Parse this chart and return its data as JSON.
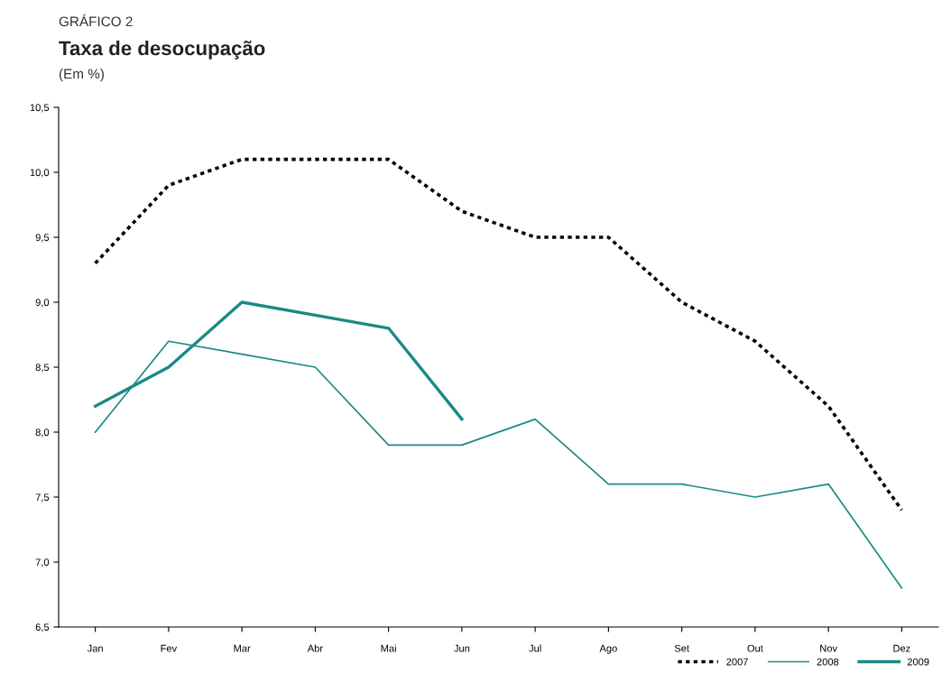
{
  "chart_data": {
    "type": "line",
    "title": "Taxa de desocupação",
    "subtitle": "(Em %)",
    "annotations": [
      "GRÁFICO 2"
    ],
    "categories": [
      "Jan",
      "Fev",
      "Mar",
      "Abr",
      "Mai",
      "Jun",
      "Jul",
      "Ago",
      "Set",
      "Out",
      "Nov",
      "Dez"
    ],
    "series": [
      {
        "name": "2007",
        "color": "#000000",
        "line_style": "dotted",
        "values": [
          9.3,
          9.9,
          10.1,
          10.1,
          10.1,
          9.7,
          9.5,
          9.5,
          9.0,
          8.7,
          8.2,
          7.4
        ]
      },
      {
        "name": "2008",
        "color": "#1a8a84",
        "line_style": "solid",
        "values": [
          8.0,
          8.7,
          8.6,
          8.5,
          7.9,
          7.9,
          8.1,
          7.6,
          7.6,
          7.5,
          7.6,
          6.8
        ]
      },
      {
        "name": "2009",
        "color": "#1a8a84",
        "line_style": "solid",
        "values": [
          8.2,
          8.5,
          9.0,
          8.9,
          8.8,
          8.1,
          null,
          null,
          null,
          null,
          null,
          null
        ]
      }
    ],
    "ylim": [
      6.5,
      10.5
    ],
    "yticks": [
      {
        "value": 6.5,
        "label": "6,5"
      },
      {
        "value": 7.0,
        "label": "7,0"
      },
      {
        "value": 7.5,
        "label": "7,5"
      },
      {
        "value": 8.0,
        "label": "8,0"
      },
      {
        "value": 8.5,
        "label": "8,5"
      },
      {
        "value": 9.0,
        "label": "9,0"
      },
      {
        "value": 9.5,
        "label": "9,5"
      },
      {
        "value": 10.0,
        "label": "10,0"
      },
      {
        "value": 10.5,
        "label": "10,5"
      }
    ],
    "grid": false,
    "legend": "bottom right",
    "marker": "none"
  }
}
